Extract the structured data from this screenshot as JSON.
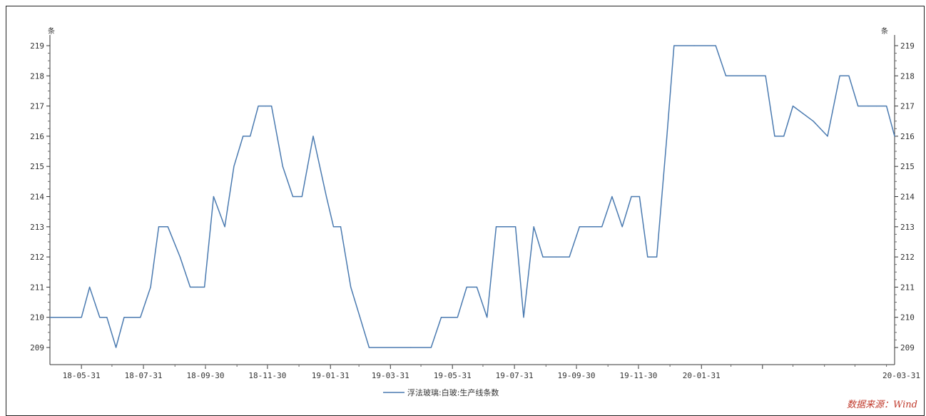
{
  "chart_data": {
    "type": "line",
    "title": "",
    "xlabel": "",
    "ylabel": "",
    "y_unit_left": "条",
    "y_unit_right": "条",
    "ylim": [
      209,
      219
    ],
    "yticks": [
      "209",
      "210",
      "211",
      "212",
      "213",
      "214",
      "215",
      "216",
      "217",
      "218",
      "219"
    ],
    "xticks": [
      "18-05-31",
      "18-07-31",
      "18-09-30",
      "18-11-30",
      "19-01-31",
      "19-03-31",
      "19-05-31",
      "19-07-31",
      "19-09-30",
      "19-11-30",
      "20-01-31",
      "20-03-31"
    ],
    "x_start": "18-04-30",
    "grid": false,
    "legend": "bottom",
    "source": "数据来源：Wind",
    "series": [
      {
        "name": "浮法玻璃:白玻:生产线条数",
        "color": "#4a7ab0",
        "points": [
          [
            "18-04-30",
            210
          ],
          [
            "18-05-31",
            210
          ],
          [
            "18-06-08",
            211
          ],
          [
            "18-06-18",
            210
          ],
          [
            "18-06-25",
            210
          ],
          [
            "18-07-04",
            209
          ],
          [
            "18-07-12",
            210
          ],
          [
            "18-07-20",
            210
          ],
          [
            "18-07-28",
            210
          ],
          [
            "18-08-07",
            211
          ],
          [
            "18-08-15",
            213
          ],
          [
            "18-08-24",
            213
          ],
          [
            "18-09-05",
            212
          ],
          [
            "18-09-15",
            211
          ],
          [
            "18-09-22",
            211
          ],
          [
            "18-09-29",
            211
          ],
          [
            "18-10-08",
            214
          ],
          [
            "18-10-19",
            213
          ],
          [
            "18-10-28",
            215
          ],
          [
            "18-11-06",
            216
          ],
          [
            "18-11-13",
            216
          ],
          [
            "18-11-21",
            217
          ],
          [
            "18-11-28",
            217
          ],
          [
            "18-12-04",
            217
          ],
          [
            "18-12-15",
            215
          ],
          [
            "18-12-25",
            214
          ],
          [
            "19-01-03",
            214
          ],
          [
            "19-01-14",
            216
          ],
          [
            "19-01-27",
            214
          ],
          [
            "19-02-03",
            213
          ],
          [
            "19-02-10",
            213
          ],
          [
            "19-02-20",
            211
          ],
          [
            "19-03-01",
            210
          ],
          [
            "19-03-10",
            209
          ],
          [
            "19-04-20",
            209
          ],
          [
            "19-05-10",
            209
          ],
          [
            "19-05-20",
            210
          ],
          [
            "19-06-05",
            210
          ],
          [
            "19-06-14",
            211
          ],
          [
            "19-06-24",
            211
          ],
          [
            "19-07-04",
            210
          ],
          [
            "19-07-13",
            213
          ],
          [
            "19-07-24",
            213
          ],
          [
            "19-08-01",
            213
          ],
          [
            "19-08-09",
            210
          ],
          [
            "19-08-19",
            213
          ],
          [
            "19-08-28",
            212
          ],
          [
            "19-09-10",
            212
          ],
          [
            "19-09-23",
            212
          ],
          [
            "19-10-03",
            213
          ],
          [
            "19-10-13",
            213
          ],
          [
            "19-10-25",
            213
          ],
          [
            "19-11-04",
            214
          ],
          [
            "19-11-14",
            213
          ],
          [
            "19-11-23",
            214
          ],
          [
            "19-12-01",
            214
          ],
          [
            "19-12-09",
            212
          ],
          [
            "19-12-18",
            212
          ],
          [
            "19-12-28",
            216
          ],
          [
            "20-01-04",
            219
          ],
          [
            "20-01-24",
            219
          ],
          [
            "20-02-14",
            219
          ],
          [
            "20-02-24",
            218
          ],
          [
            "20-03-06",
            218
          ],
          [
            "20-03-16",
            218
          ],
          [
            "20-03-27",
            218
          ],
          [
            "20-04-03",
            218
          ],
          [
            "20-04-12",
            216
          ],
          [
            "20-04-21",
            216
          ],
          [
            "20-04-30",
            217
          ],
          [
            "20-05-20",
            216.5
          ],
          [
            "20-06-03",
            216
          ],
          [
            "20-06-15",
            218
          ],
          [
            "20-06-24",
            218
          ],
          [
            "20-07-03",
            217
          ],
          [
            "20-07-13",
            217
          ],
          [
            "20-07-21",
            217
          ],
          [
            "20-07-31",
            217
          ],
          [
            "20-08-08",
            216
          ]
        ]
      }
    ]
  }
}
